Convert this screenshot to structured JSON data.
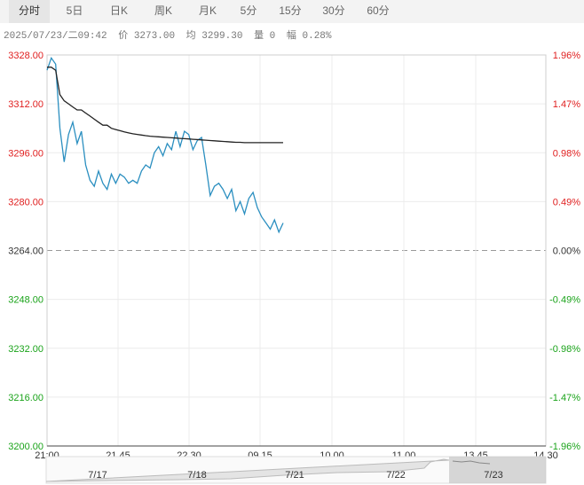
{
  "tabs": [
    "分时",
    "5日",
    "日K",
    "周K",
    "月K",
    "5分",
    "15分",
    "30分",
    "60分"
  ],
  "active_tab": 0,
  "info": {
    "datetime": "2025/07/23/二09:42",
    "price": "价 3273.00",
    "avg": "均 3299.30",
    "volume": "量 0",
    "change": "幅 0.28%"
  },
  "colors": {
    "up": "#e02020",
    "down": "#1aa31a",
    "flat": "#333333",
    "price_line": "#2b8fc0",
    "avg_line": "#222222"
  },
  "y_labels_left": [
    "3328.00",
    "3312.00",
    "3296.00",
    "3280.00",
    "3264.00",
    "3248.00",
    "3232.00",
    "3216.00",
    "3200.00"
  ],
  "y_labels_right": [
    "1.96%",
    "1.47%",
    "0.98%",
    "0.49%",
    "0.00%",
    "-0.49%",
    "-0.98%",
    "-1.47%",
    "-1.96%"
  ],
  "x_labels": [
    "21:00",
    "21.45",
    "22.30",
    "09.15",
    "10.00",
    "11.00",
    "13.45",
    "14.30"
  ],
  "nav_dates": [
    "7/17",
    "7/18",
    "7/21",
    "7/22",
    "7/23"
  ],
  "chart_data": {
    "type": "line",
    "x": [
      "21:00",
      "21:03",
      "21:06",
      "21:09",
      "21:12",
      "21:15",
      "21:18",
      "21:21",
      "21:24",
      "21:27",
      "21:30",
      "21:33",
      "21:36",
      "21:39",
      "21:42",
      "21:45",
      "21:48",
      "21:51",
      "21:54",
      "21:57",
      "22:00",
      "22:03",
      "22:06",
      "22:09",
      "22:12",
      "22:15",
      "22:18",
      "22:21",
      "22:24",
      "22:27",
      "22:30",
      "22:33",
      "22:36",
      "22:39",
      "22:42",
      "22:45",
      "22:48",
      "22:51",
      "22:54",
      "22:57",
      "23:00",
      "09:00",
      "09:03",
      "09:06",
      "09:09",
      "09:12",
      "09:15",
      "09:18",
      "09:21",
      "09:24",
      "09:27",
      "09:30",
      "09:33",
      "09:36",
      "09:39",
      "09:42"
    ],
    "series": [
      {
        "values": [
          3323,
          3327,
          3325,
          3304,
          3293,
          3302,
          3306,
          3299,
          3303,
          3292,
          3287,
          3285,
          3290,
          3286,
          3284,
          3289,
          3286,
          3289,
          3288,
          3286,
          3287,
          3286,
          3290,
          3292,
          3291,
          3296,
          3298,
          3295,
          3299,
          3297,
          3303,
          3298,
          3303,
          3302,
          3297,
          3300,
          3301,
          3292,
          3282,
          3285,
          3286,
          3284,
          3281,
          3284,
          3277,
          3280,
          3276,
          3281,
          3283,
          3278,
          3275,
          3273,
          3271,
          3274,
          3270,
          3273
        ]
      },
      {
        "values": [
          3324,
          3324,
          3323,
          3315,
          3313,
          3312,
          3311,
          3310,
          3310,
          3309,
          3308,
          3307,
          3306,
          3305,
          3305,
          3304,
          3303.6,
          3303.2,
          3302.8,
          3302.5,
          3302.2,
          3302,
          3301.8,
          3301.6,
          3301.4,
          3301.3,
          3301.2,
          3301.1,
          3301,
          3300.9,
          3300.8,
          3300.7,
          3300.6,
          3300.5,
          3300.4,
          3300.3,
          3300.2,
          3300.1,
          3300,
          3299.9,
          3299.8,
          3299.7,
          3299.6,
          3299.5,
          3299.4,
          3299.4,
          3299.3,
          3299.3,
          3299.3,
          3299.3,
          3299.3,
          3299.3,
          3299.3,
          3299.3,
          3299.3,
          3299.3
        ]
      }
    ],
    "ylim": [
      3200,
      3328
    ],
    "baseline": 3264,
    "grid": true
  }
}
